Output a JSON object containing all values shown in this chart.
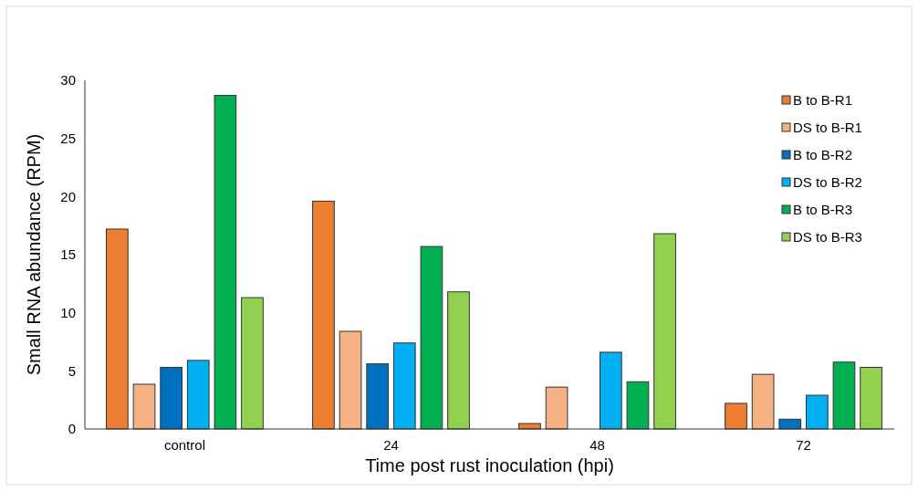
{
  "chart_data": {
    "type": "bar",
    "xlabel": "Time post rust inoculation (hpi)",
    "ylabel": "Small RNA abundance (RPM)",
    "categories": [
      "control",
      "24",
      "48",
      "72"
    ],
    "series": [
      {
        "name": "B to B-R1",
        "color": "#ed7d31",
        "values": [
          17.2,
          19.6,
          0.47,
          2.2
        ]
      },
      {
        "name": "DS to B-R1",
        "color": "#f4b183",
        "values": [
          3.85,
          8.4,
          3.6,
          4.7
        ]
      },
      {
        "name": "B to B-R2",
        "color": "#0070c0",
        "values": [
          5.3,
          5.6,
          null,
          0.84
        ]
      },
      {
        "name": "DS to B-R2",
        "color": "#00b0f0",
        "values": [
          5.9,
          7.4,
          6.6,
          2.9
        ]
      },
      {
        "name": "B to B-R3",
        "color": "#00b050",
        "values": [
          28.7,
          15.7,
          4.06,
          5.75
        ]
      },
      {
        "name": "DS to B-R3",
        "color": "#92d050",
        "values": [
          11.3,
          11.8,
          16.8,
          5.3
        ]
      }
    ],
    "ylim": [
      0,
      30
    ],
    "yticks": [
      0,
      5,
      10,
      15,
      20,
      25,
      30
    ],
    "grid": false,
    "legend": "top right"
  }
}
